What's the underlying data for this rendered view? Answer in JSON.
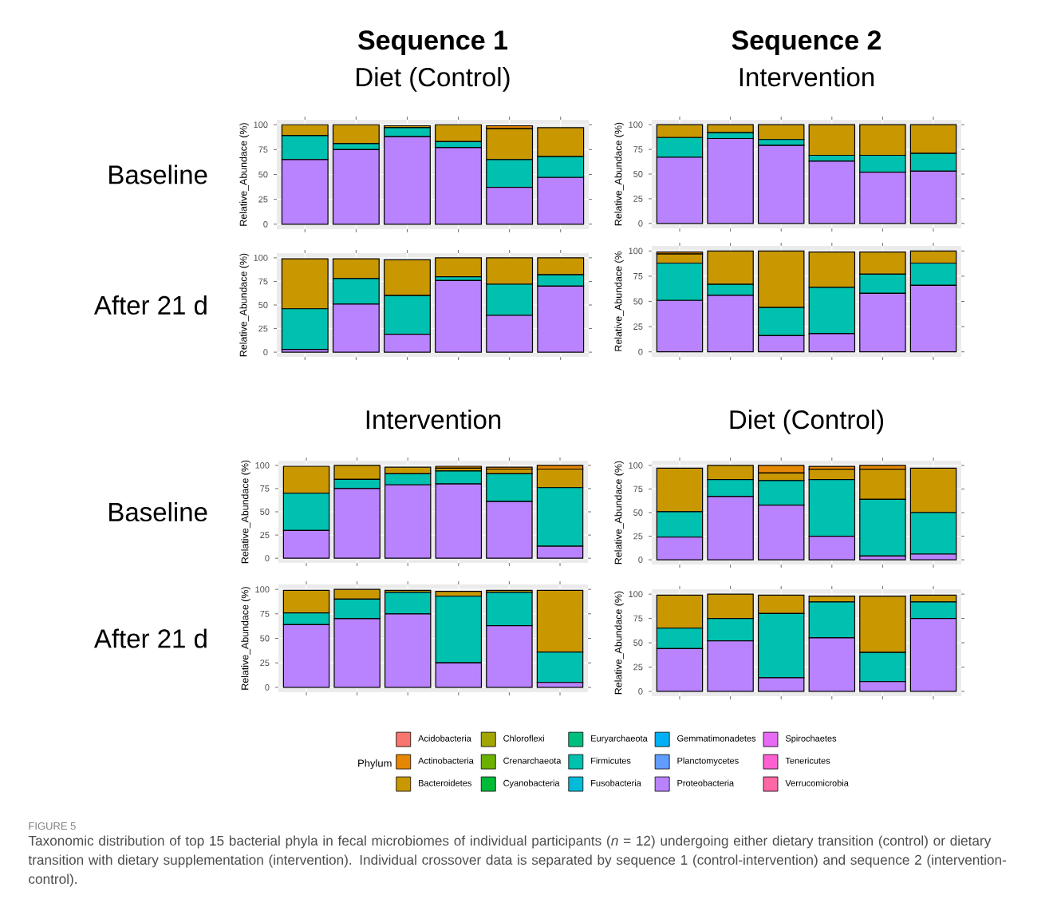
{
  "chart_data": [
    {
      "type": "bar",
      "stacked": true,
      "title": "Sequence 1",
      "subtitle": "Diet (Control)",
      "annotations": [
        "Baseline"
      ],
      "ylabel": "Relative_Abundace (%)",
      "categories": [
        null,
        null,
        null,
        null,
        null,
        null
      ],
      "ylim": [
        -5,
        105
      ],
      "yticks": [
        0,
        25,
        50,
        75,
        100
      ],
      "grid": true,
      "tick_labels": "y",
      "series": [
        {
          "color": "#b983ff",
          "values": [
            65,
            75,
            88,
            77,
            37,
            47
          ]
        },
        {
          "color": "#00c0af",
          "values": [
            24,
            6,
            9,
            6,
            28,
            21
          ]
        },
        {
          "color": "#c99800",
          "values": [
            11,
            19,
            2,
            17,
            31,
            29
          ]
        },
        {
          "color": "#e58700",
          "values": [
            0,
            0,
            0,
            0,
            3,
            0
          ]
        }
      ]
    },
    {
      "type": "bar",
      "stacked": true,
      "title": "Sequence 2",
      "subtitle": "Intervention",
      "ylabel": "Relative_Abundace (%)",
      "categories": [
        null,
        null,
        null,
        null,
        null,
        null
      ],
      "ylim": [
        -5,
        105
      ],
      "yticks": [
        0,
        25,
        50,
        75,
        100
      ],
      "grid": true,
      "tick_labels": "y",
      "series": [
        {
          "color": "#b983ff",
          "values": [
            67,
            86,
            79,
            63,
            52,
            53
          ]
        },
        {
          "color": "#00c0af",
          "values": [
            20,
            6,
            6,
            6,
            17,
            18
          ]
        },
        {
          "color": "#c99800",
          "values": [
            13,
            8,
            15,
            31,
            31,
            29
          ]
        }
      ]
    },
    {
      "type": "bar",
      "stacked": true,
      "annotations": [
        "After 21 d"
      ],
      "ylabel": "Relative_Abundace (%)",
      "categories": [
        null,
        null,
        null,
        null,
        null,
        null
      ],
      "ylim": [
        -5,
        105
      ],
      "yticks": [
        0,
        25,
        50,
        75,
        100
      ],
      "grid": true,
      "tick_labels": "y",
      "series": [
        {
          "color": "#b983ff",
          "values": [
            3,
            51,
            19,
            76,
            39,
            70
          ]
        },
        {
          "color": "#00c0af",
          "values": [
            43,
            27,
            41,
            4,
            33,
            12
          ]
        },
        {
          "color": "#c99800",
          "values": [
            53,
            21,
            38,
            20,
            28,
            18
          ]
        }
      ]
    },
    {
      "type": "bar",
      "stacked": true,
      "ylabel": "Relative_Abundace (%",
      "categories": [
        null,
        null,
        null,
        null,
        null,
        null
      ],
      "ylim": [
        -5,
        105
      ],
      "yticks": [
        0,
        25,
        50,
        75,
        100
      ],
      "grid": true,
      "tick_labels": "y",
      "series": [
        {
          "color": "#b983ff",
          "values": [
            51,
            56,
            16,
            18,
            58,
            66
          ]
        },
        {
          "color": "#00c0af",
          "values": [
            37,
            11,
            28,
            46,
            19,
            22
          ]
        },
        {
          "color": "#c99800",
          "values": [
            9,
            33,
            56,
            35,
            22,
            12
          ]
        },
        {
          "color": "#e58700",
          "values": [
            2,
            0,
            0,
            0,
            0,
            0
          ]
        }
      ]
    },
    {
      "type": "bar",
      "stacked": true,
      "title": "Intervention",
      "annotations": [
        "Baseline"
      ],
      "ylabel": "Relative_Abundace (%)",
      "categories": [
        null,
        null,
        null,
        null,
        null,
        null
      ],
      "ylim": [
        -5,
        105
      ],
      "yticks": [
        0,
        25,
        50,
        75,
        100
      ],
      "grid": true,
      "tick_labels": "y",
      "series": [
        {
          "color": "#b983ff",
          "values": [
            30,
            75,
            79,
            80,
            61,
            13
          ]
        },
        {
          "color": "#00c0af",
          "values": [
            40,
            10,
            12,
            14,
            30,
            63
          ]
        },
        {
          "color": "#c99800",
          "values": [
            29,
            15,
            7,
            3,
            5,
            20
          ]
        },
        {
          "color": "#e58700",
          "values": [
            0,
            0,
            0,
            2,
            2,
            4
          ]
        }
      ]
    },
    {
      "type": "bar",
      "stacked": true,
      "title": "Diet (Control)",
      "ylabel": "Relative_Abundace (%)",
      "categories": [
        null,
        null,
        null,
        null,
        null,
        null
      ],
      "ylim": [
        -5,
        105
      ],
      "yticks": [
        0,
        25,
        50,
        75,
        100
      ],
      "grid": true,
      "tick_labels": "y",
      "series": [
        {
          "color": "#b983ff",
          "values": [
            24,
            67,
            58,
            25,
            4,
            6
          ]
        },
        {
          "color": "#00c0af",
          "values": [
            27,
            18,
            26,
            60,
            60,
            44
          ]
        },
        {
          "color": "#c99800",
          "values": [
            46,
            15,
            8,
            11,
            32,
            47
          ]
        },
        {
          "color": "#e58700",
          "values": [
            0,
            0,
            8,
            3,
            4,
            0
          ]
        }
      ]
    },
    {
      "type": "bar",
      "stacked": true,
      "annotations": [
        "After 21 d"
      ],
      "ylabel": "Relative_Abundace (%)",
      "categories": [
        null,
        null,
        null,
        null,
        null,
        null
      ],
      "ylim": [
        -5,
        105
      ],
      "yticks": [
        0,
        25,
        50,
        75,
        100
      ],
      "grid": true,
      "tick_labels": "y",
      "series": [
        {
          "color": "#b983ff",
          "values": [
            64,
            70,
            75,
            25,
            63,
            5
          ]
        },
        {
          "color": "#00c0af",
          "values": [
            12,
            20,
            22,
            68,
            34,
            31
          ]
        },
        {
          "color": "#c99800",
          "values": [
            23,
            10,
            2,
            5,
            2,
            63
          ]
        }
      ]
    },
    {
      "type": "bar",
      "stacked": true,
      "ylabel": "Relative_Abundace (%)",
      "legend": "bottom",
      "legend_title": "Phylum",
      "annotations": [
        "FIGURE 5",
        "Taxonomic distribution of top 15 bacterial phyla in fecal microbiomes of individual participants (*n* = 12) undergoing either dietary transition (control) or dietary transition with dietary supplementation (intervention). Individual crossover data is separated by sequence 1 (control-intervention) and sequence 2 (intervention-control)."
      ],
      "categories": [
        null,
        null,
        null,
        null,
        null,
        null
      ],
      "ylim": [
        -5,
        105
      ],
      "yticks": [
        0,
        25,
        50,
        75,
        100
      ],
      "grid": true,
      "tick_labels": "y",
      "series": [
        {
          "name": "Verrucomicrobia",
          "color": "#ff67a4",
          "values": [
            null,
            null,
            null,
            null,
            null,
            null
          ]
        },
        {
          "name": "Tenericutes",
          "color": "#fd61d1",
          "values": [
            null,
            null,
            null,
            null,
            null,
            null
          ]
        },
        {
          "name": "Spirochaetes",
          "color": "#e76bf3",
          "values": [
            null,
            null,
            null,
            null,
            null,
            null
          ]
        },
        {
          "name": "Proteobacteria",
          "color": "#b983ff",
          "values": [
            44,
            52,
            14,
            55,
            10,
            75
          ]
        },
        {
          "name": "Planctomycetes",
          "color": "#619cff",
          "values": [
            null,
            null,
            null,
            null,
            null,
            null
          ]
        },
        {
          "name": "Gemmatimonadetes",
          "color": "#00b0f6",
          "values": [
            null,
            null,
            null,
            null,
            null,
            null
          ]
        },
        {
          "name": "Fusobacteria",
          "color": "#00bcd8",
          "values": [
            null,
            null,
            null,
            null,
            null,
            null
          ]
        },
        {
          "name": "Firmicutes",
          "color": "#00c0af",
          "values": [
            21,
            23,
            66,
            37,
            30,
            17
          ]
        },
        {
          "name": "Euryarchaeota",
          "color": "#00bf7d",
          "values": [
            null,
            null,
            null,
            null,
            null,
            null
          ]
        },
        {
          "name": "Cyanobacteria",
          "color": "#00ba38",
          "values": [
            null,
            null,
            null,
            null,
            null,
            null
          ]
        },
        {
          "name": "Crenarchaeota",
          "color": "#6bb100",
          "values": [
            null,
            null,
            null,
            null,
            null,
            null
          ]
        },
        {
          "name": "Chloroflexi",
          "color": "#a3a500",
          "values": [
            null,
            null,
            null,
            null,
            null,
            null
          ]
        },
        {
          "name": "Bacteroidetes",
          "color": "#c99800",
          "values": [
            34,
            25,
            19,
            6,
            58,
            7
          ]
        },
        {
          "name": "Actinobacteria",
          "color": "#e58700",
          "values": [
            null,
            null,
            null,
            null,
            null,
            null
          ]
        },
        {
          "name": "Acidobacteria",
          "color": "#f8766d",
          "values": [
            null,
            null,
            null,
            null,
            null,
            null
          ]
        }
      ]
    }
  ]
}
